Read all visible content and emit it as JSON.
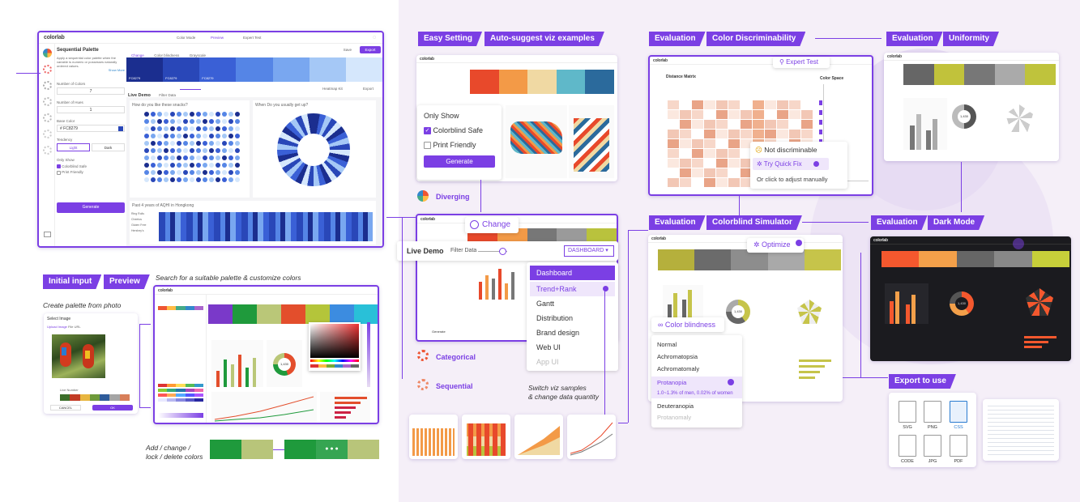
{
  "main_app": {
    "logo": "colorlab",
    "tabs": [
      "Color Mode",
      "Preview",
      "Expert Test"
    ],
    "panel_title": "Sequential Palette",
    "panel_desc": "Apply a sequential color palette when the variable is numeric or possesses naturally ordered values.",
    "show_more": "Show More",
    "num_colors_label": "Number of Colors",
    "num_colors": "7",
    "num_hues_label": "Number of Hues",
    "num_hues": "1",
    "base_color_label": "Base Color",
    "base_color": "# FC8279",
    "tendency_label": "Tendency",
    "light": "Light",
    "dark": "Dark",
    "only_show": "Only Show",
    "colorblind_safe": "Colorblind Safe",
    "print_friendly": "Print Friendly",
    "generate": "Generate",
    "toolbar": [
      "Change",
      "Color blindness",
      "Grayscale"
    ],
    "save": "Save",
    "export": "Export",
    "swatch_labels": [
      "FC8279",
      "FC8279",
      "FC8279"
    ],
    "live_demo": "Live Demo",
    "filter_data": "Filter Data",
    "heatmap_kit": "Heatmap Kit",
    "chart1_title": "How do you like these snacks?",
    "chart2_title": "When Do you usually get up?",
    "chart3_title": "Past 4 years of AQHI in Hongkong",
    "row_labels": [
      "Ring Rolls",
      "Cheetos",
      "Gluten Free",
      "Hershey's"
    ],
    "swatches": [
      "#1b2e8f",
      "#2947b8",
      "#3a60d6",
      "#5585e6",
      "#79a7f0",
      "#a5c8f6",
      "#d5e7fc"
    ]
  },
  "tags": {
    "easy_setting": "Easy Setting",
    "auto_suggest": "Auto-suggest viz examples",
    "evaluation": "Evaluation",
    "color_disc": "Color Discriminability",
    "uniformity": "Uniformity",
    "colorblind_sim": "Colorblind Simulator",
    "dark_mode": "Dark Mode",
    "initial_input": "Initial input",
    "preview": "Preview",
    "export_to_use": "Export to use"
  },
  "captions": {
    "search": "Search for a suitable palette & customize colors",
    "from_photo": "Create palette from photo",
    "add_change": "Add / change /\nlock / delete colors",
    "switch_viz": "Switch viz samples\n& change data quantity"
  },
  "only_show_card": {
    "title": "Only Show",
    "opt1": "Colorblind Safe",
    "opt2": "Print Friendly",
    "generate": "Generate"
  },
  "palette_types": {
    "diverging": "Diverging",
    "categorical": "Categorical",
    "sequential": "Sequential"
  },
  "change_card": {
    "label": "Change"
  },
  "live_demo_bar": {
    "label": "Live Demo",
    "filter": "Filter Data",
    "dropdown": "DASHBOARD"
  },
  "dashboard_menu": [
    "Dashboard",
    "Trend+Rank",
    "Gantt",
    "Distribution",
    "Brand design",
    "Web UI",
    "App UI"
  ],
  "expert_test": "Expert Test",
  "distance_matrix": "Distance Matrix",
  "color_space": "Color Space",
  "discrim_card": {
    "title": "Not discriminable",
    "quick_fix": "Try Quick Fix",
    "manual": "Or click to adjust manually"
  },
  "optimize": "Optimize",
  "colorblind_menu": {
    "title": "Color blindness",
    "items": [
      "Normal",
      "Achromatopsia",
      "Achromatomaly",
      "Protanopia",
      "Deuteranopia",
      "Protanomaly"
    ],
    "note": "1.0~1.3% of men, 0.02% of women"
  },
  "photo_dialog": {
    "title": "Select Image",
    "tabs": [
      "Upload Image",
      "File URL"
    ],
    "live_number": "Live Number",
    "cancel": "CANCEL",
    "ok": "OK"
  },
  "export_files": [
    "SVG",
    "PNG",
    "CSS",
    "CODE",
    "JPG",
    "PDF"
  ],
  "donut_value": "1,430"
}
